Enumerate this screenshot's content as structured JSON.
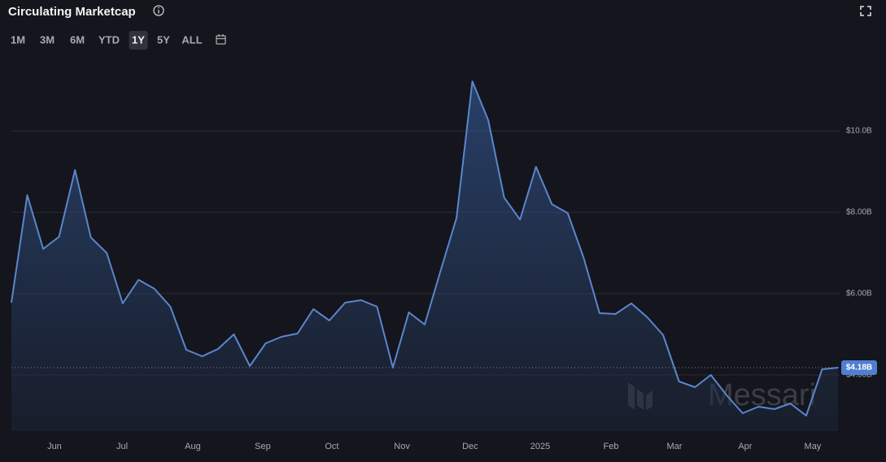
{
  "header": {
    "title": "Circulating Marketcap",
    "ranges": [
      "1M",
      "3M",
      "6M",
      "YTD",
      "1Y",
      "5Y",
      "ALL"
    ],
    "active_range": 4
  },
  "watermark": "Messari",
  "chart_data": {
    "type": "area",
    "values": [
      5.78,
      8.42,
      7.1,
      7.4,
      9.04,
      7.38,
      7.0,
      5.76,
      6.34,
      6.12,
      5.68,
      4.62,
      4.46,
      4.64,
      5.0,
      4.22,
      4.78,
      4.94,
      5.02,
      5.62,
      5.34,
      5.78,
      5.84,
      5.68,
      4.18,
      5.54,
      5.24,
      6.56,
      7.86,
      11.22,
      10.26,
      8.36,
      7.82,
      9.12,
      8.2,
      7.98,
      6.88,
      5.52,
      5.5,
      5.76,
      5.42,
      4.98,
      3.84,
      3.7,
      4.0,
      3.5,
      3.06,
      3.22,
      3.16,
      3.3,
      3.0,
      4.14,
      4.18
    ],
    "color": "#5a86cc",
    "xlim": [
      0,
      52
    ],
    "xticks": [
      {
        "value": 2.71,
        "label": "Jun"
      },
      {
        "value": 6.96,
        "label": "Jul"
      },
      {
        "value": 11.41,
        "label": "Aug"
      },
      {
        "value": 15.81,
        "label": "Sep"
      },
      {
        "value": 20.16,
        "label": "Oct"
      },
      {
        "value": 24.57,
        "label": "Nov"
      },
      {
        "value": 28.86,
        "label": "Dec"
      },
      {
        "value": 33.27,
        "label": "2025"
      },
      {
        "value": 37.72,
        "label": "Feb"
      },
      {
        "value": 41.71,
        "label": "Mar"
      },
      {
        "value": 46.16,
        "label": "Apr"
      },
      {
        "value": 50.41,
        "label": "May"
      }
    ],
    "ylim": [
      2.62,
      11.82
    ],
    "yticks": [
      {
        "value": 4,
        "label": "$4.00B"
      },
      {
        "value": 6,
        "label": "$6.00B"
      },
      {
        "value": 8,
        "label": "$8.00B"
      },
      {
        "value": 10,
        "label": "$10.0B"
      }
    ],
    "grid": true,
    "annotations": [
      {
        "value": 4.18,
        "label": "$4.18B"
      }
    ]
  }
}
